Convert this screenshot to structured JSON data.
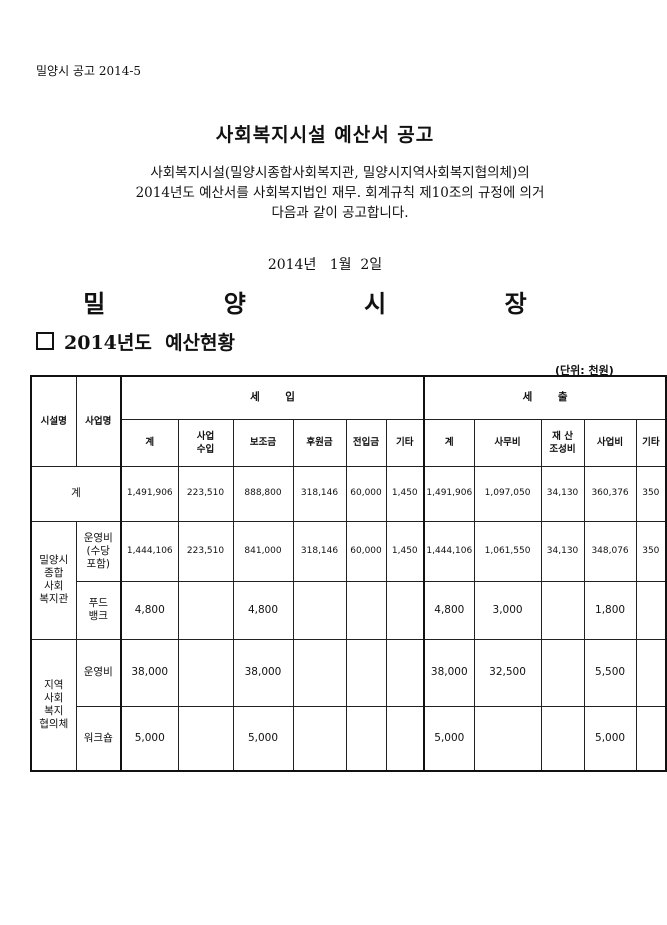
{
  "notice_no": "밀양시 공고 2014-5",
  "title": "사회복지시설 예산서 공고",
  "body_lines": [
    "사회복지시설(밀양시종합사회복지관, 밀양시지역사회복지협의체)의",
    "2014년도 예산서를 사회복지법인 재무. 회계규칙 제10조의 규정에 의거",
    "다음과 같이 공고합니다."
  ],
  "date": "2014년   1월  2일",
  "mayor": "밀 양 시 장",
  "section_title": "2014년도  예산현황",
  "unit": "(단위: 천원)",
  "table": {
    "col_facility": "시설명",
    "col_project": "사업명",
    "income_header": "세       입",
    "expense_header": "세       출",
    "income_cols": [
      "계",
      "사업\n수입",
      "보조금",
      "후원금",
      "전입금",
      "기타"
    ],
    "expense_cols": [
      "계",
      "사무비",
      "재 산\n조성비",
      "사업비",
      "기타"
    ],
    "total_label": "계",
    "total_row": [
      "1,491,906",
      "223,510",
      "888,800",
      "318,146",
      "60,000",
      "1,450",
      "1,491,906",
      "1,097,050",
      "34,130",
      "360,376",
      "350"
    ],
    "groups": [
      {
        "facility": "밀양시\n종합\n사회\n복지관",
        "rows": [
          {
            "project": "운영비\n(수당\n포함)",
            "values": [
              "1,444,106",
              "223,510",
              "841,000",
              "318,146",
              "60,000",
              "1,450",
              "1,444,106",
              "1,061,550",
              "34,130",
              "348,076",
              "350"
            ]
          },
          {
            "project": "푸드\n뱅크",
            "values": [
              "4,800",
              "",
              "4,800",
              "",
              "",
              "",
              "4,800",
              "3,000",
              "",
              "1,800",
              ""
            ]
          }
        ]
      },
      {
        "facility": "지역\n사회\n복지\n협의체",
        "rows": [
          {
            "project": "운영비",
            "values": [
              "38,000",
              "",
              "38,000",
              "",
              "",
              "",
              "38,000",
              "32,500",
              "",
              "5,500",
              ""
            ]
          },
          {
            "project": "워크숍",
            "values": [
              "5,000",
              "",
              "5,000",
              "",
              "",
              "",
              "5,000",
              "",
              "",
              "5,000",
              ""
            ]
          }
        ]
      }
    ]
  }
}
